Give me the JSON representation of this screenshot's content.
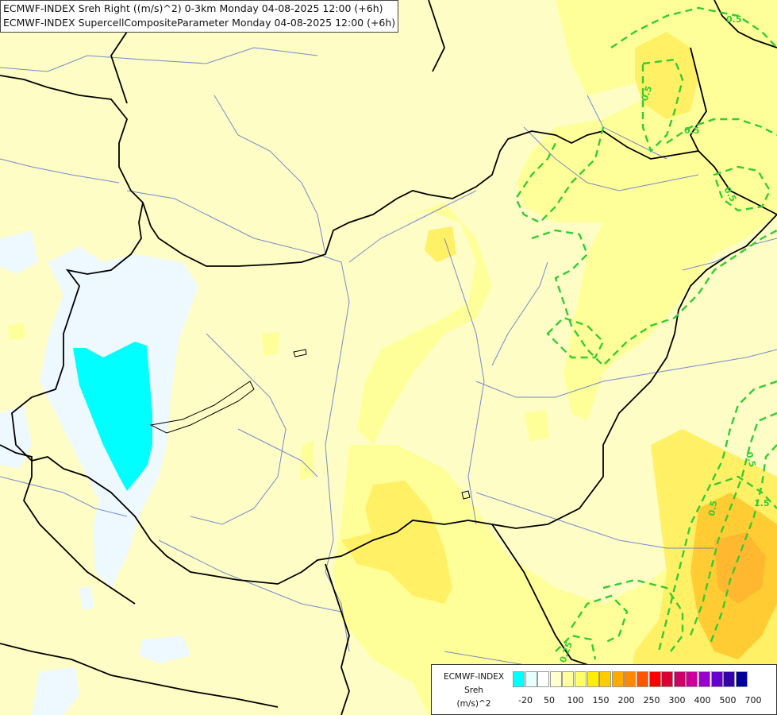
{
  "title": {
    "line1": "ECMWF-INDEX Sreh Right ((m/s)^2) 0-3km Monday 04-08-2025 12:00 (+6h)",
    "line2": "ECMWF-INDEX SupercellCompositeParameter Monday 04-08-2025 12:00 (+6h)"
  },
  "legend": {
    "name": "ECMWF-INDEX",
    "variable": "Sreh",
    "unit": "(m/s)^2",
    "colors": [
      "#00ffff",
      "#e6ffff",
      "#ffffff",
      "#ffffd0",
      "#ffff9c",
      "#ffff66",
      "#ffee00",
      "#ffcc00",
      "#ffaa00",
      "#ff8800",
      "#ff5500",
      "#ff0000",
      "#dd0033",
      "#cc0066",
      "#cc0099",
      "#9900cc",
      "#6600cc",
      "#3300aa",
      "#000099"
    ],
    "ticks": [
      "-20",
      "50",
      "100",
      "150",
      "200",
      "250",
      "300",
      "400",
      "500",
      "700"
    ]
  },
  "contour_labels": [
    "0.5",
    "0.5",
    "0.5",
    "0.5",
    "0.5",
    "0.5",
    "1.5",
    "0.25"
  ],
  "map_colors": {
    "background": "#fdfdc5",
    "low_band": "#ffff9c",
    "mid_band": "#fff066",
    "high_band": "#ffcc33",
    "negative": "#00ffff",
    "near_zero": "#e8f8ff",
    "contour": "#33cc33",
    "border": "#000000",
    "river": "#3355cc"
  }
}
